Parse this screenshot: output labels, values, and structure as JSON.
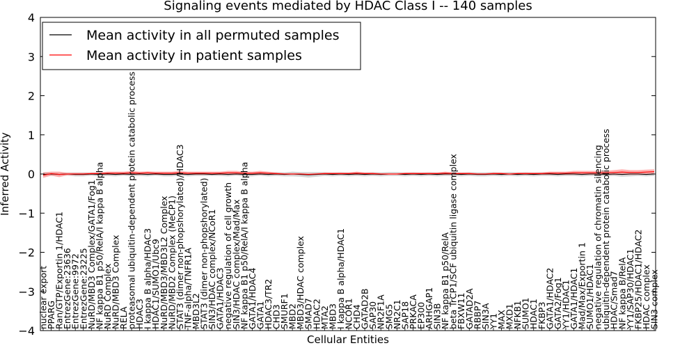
{
  "chart_data": {
    "type": "line",
    "title": "Signaling events mediated by HDAC Class I -- 140 samples",
    "xlabel": "Cellular Entities",
    "ylabel": "Inferred Activity",
    "ylim": [
      -4,
      4
    ],
    "yticks": [
      -4,
      -3,
      -2,
      -1,
      0,
      1,
      2,
      3,
      4
    ],
    "ytick_labels": [
      "−4",
      "−3",
      "−2",
      "−1",
      "0",
      "1",
      "2",
      "3",
      "4"
    ],
    "grid": false,
    "legend_position": "top-left",
    "categories": [
      "nuclear export",
      "PPARG",
      "Ran/GTP/Exportin 1/HDAC1",
      "EntrezGene:23636",
      "EntrezGene:9972",
      "EntrezGene:23225",
      "NuRD/MBD3 Complex/GATA1/Fog1",
      "NF kappa B1 p50/RelA/I kappa B alpha",
      "NuRD Complex",
      "NuRD/MBD3 Complex",
      "RELA",
      "proteasomal ubiquitin-dependent protein catabolic process",
      "HDAC3",
      "I kappa B alpha/HDAC3",
      "HDAC1/SUMO1/Ubc9",
      "NuRD/MBD3/MBD3L2 Complex",
      "NuRD/MBD2 Complex (MeCP1)",
      "STAT3 (dimer non-phopshorylated)/HDAC3",
      "TNF-alpha/TNFR1A",
      "MBD3L2",
      "STAT3 (dimer non-phopshorylated)",
      "SIN3/HDAC complex/NCoR1",
      "GATA1/HDAC3",
      "negative regulation of cell growth",
      "SIN3/HDAC complex/Mad/Max",
      "NF kappa B1 p50/RelA/I kappa B alpha",
      "GATA1/HDAC4",
      "GATA1",
      "HDAC3/TR2",
      "CHD3",
      "SMURF1",
      "MBD2",
      "MBD3/HDAC complex",
      "SMAD7",
      "HDAC2",
      "MTA2",
      "MBD3",
      "I kappa B alpha/HDAC1",
      "NCOR1",
      "CHD4",
      "GATAD2B",
      "SAP30",
      "NR2F1A",
      "SMG5",
      "NR2C1",
      "SAP18",
      "PRKACA",
      "EP300",
      "ARHGAP1",
      "SIN3B",
      "NF kappa B1 p50/RelA",
      "beta TrCP1/SCF ubiquitin ligase complex",
      "FBXW11",
      "GATAD2A",
      "RBBP7",
      "SIN3A",
      "YY1",
      "MAX",
      "MXD1",
      "NFKB1",
      "SUMO1",
      "HDAC1",
      "FKBP3",
      "GATA1/HDAC2",
      "GATA2/Fog1",
      "YY1/HDAC1",
      "GATA1/HDAC1",
      "Mad/Max/Exportin 1",
      "SUMO1/HDAC1",
      "negative regulation of chromatin silencing",
      "ubiquitin-dependent protein catabolic process",
      "HDAC/Smad7",
      "NF kappa B/RelA",
      "YY1/SAP30/HDAC1",
      "FKBP25/HDAC1/HDAC2",
      "HDAC complex",
      "SIN3 complex"
    ],
    "series": [
      {
        "name": "Mean activity in all permuted samples",
        "color": "#000000",
        "values": [
          -0.01,
          0.0,
          -0.01,
          0.0,
          -0.01,
          -0.01,
          0.0,
          -0.01,
          0.0,
          -0.01,
          0.0,
          -0.01,
          0.0,
          -0.01,
          0.0,
          -0.01,
          -0.01,
          0.0,
          -0.01,
          0.0,
          0.0,
          -0.01,
          0.0,
          -0.01,
          0.0,
          -0.01,
          -0.01,
          0.0,
          -0.01,
          0.0,
          -0.01,
          0.0,
          -0.01,
          -0.02,
          -0.01,
          0.0,
          -0.01,
          0.0,
          -0.01,
          0.0,
          -0.01,
          0.0,
          -0.01,
          0.0,
          0.0,
          -0.01,
          0.0,
          -0.01,
          0.0,
          -0.01,
          0.0,
          0.0,
          -0.01,
          0.0,
          -0.01,
          -0.01,
          0.0,
          -0.01,
          0.0,
          -0.01,
          0.0,
          -0.01,
          0.0,
          0.0,
          -0.01,
          0.0,
          0.0,
          -0.01,
          0.0,
          0.0,
          -0.01,
          0.0,
          -0.01,
          0.0,
          0.0,
          -0.01,
          0.0
        ],
        "band": [
          0.06,
          0.05,
          0.05,
          0.04,
          0.05,
          0.05,
          0.04,
          0.05,
          0.05,
          0.05,
          0.04,
          0.05,
          0.05,
          0.05,
          0.04,
          0.05,
          0.05,
          0.04,
          0.05,
          0.05,
          0.05,
          0.04,
          0.05,
          0.05,
          0.04,
          0.05,
          0.05,
          0.04,
          0.05,
          0.05,
          0.05,
          0.06,
          0.06,
          0.07,
          0.06,
          0.05,
          0.05,
          0.05,
          0.05,
          0.05,
          0.05,
          0.05,
          0.05,
          0.05,
          0.05,
          0.05,
          0.05,
          0.05,
          0.05,
          0.05,
          0.05,
          0.05,
          0.05,
          0.05,
          0.05,
          0.05,
          0.05,
          0.05,
          0.05,
          0.05,
          0.05,
          0.05,
          0.05,
          0.05,
          0.05,
          0.05,
          0.05,
          0.05,
          0.05,
          0.05,
          0.05,
          0.05,
          0.06,
          0.06,
          0.05,
          0.05,
          0.05
        ]
      },
      {
        "name": "Mean activity in patient samples",
        "color": "#ff0000",
        "values": [
          -0.03,
          0.01,
          -0.01,
          0.0,
          0.0,
          0.0,
          0.01,
          0.01,
          0.02,
          0.02,
          0.02,
          0.03,
          0.02,
          0.03,
          0.02,
          0.02,
          0.02,
          0.03,
          0.02,
          0.02,
          0.02,
          0.02,
          0.02,
          0.03,
          0.03,
          0.02,
          0.02,
          0.03,
          0.02,
          0.01,
          0.0,
          0.0,
          0.0,
          -0.01,
          0.0,
          0.01,
          0.01,
          0.01,
          0.01,
          0.02,
          0.01,
          0.01,
          0.0,
          0.0,
          0.0,
          0.01,
          0.01,
          0.01,
          0.01,
          0.01,
          0.02,
          0.01,
          0.01,
          0.01,
          0.0,
          0.0,
          0.01,
          0.01,
          0.0,
          0.01,
          0.01,
          0.01,
          0.01,
          0.02,
          0.02,
          0.02,
          0.03,
          0.03,
          0.03,
          0.03,
          0.03,
          0.04,
          0.05,
          0.04,
          0.04,
          0.05,
          0.06
        ],
        "band": [
          0.07,
          0.05,
          0.07,
          0.03,
          0.03,
          0.03,
          0.03,
          0.03,
          0.04,
          0.04,
          0.04,
          0.05,
          0.04,
          0.04,
          0.04,
          0.04,
          0.04,
          0.05,
          0.04,
          0.04,
          0.04,
          0.04,
          0.04,
          0.05,
          0.05,
          0.04,
          0.04,
          0.05,
          0.04,
          0.03,
          0.02,
          0.02,
          0.02,
          0.02,
          0.02,
          0.03,
          0.03,
          0.03,
          0.03,
          0.04,
          0.03,
          0.03,
          0.02,
          0.02,
          0.02,
          0.03,
          0.03,
          0.03,
          0.03,
          0.03,
          0.04,
          0.03,
          0.03,
          0.03,
          0.02,
          0.02,
          0.03,
          0.03,
          0.02,
          0.03,
          0.03,
          0.03,
          0.03,
          0.04,
          0.04,
          0.04,
          0.05,
          0.05,
          0.05,
          0.05,
          0.05,
          0.06,
          0.07,
          0.06,
          0.06,
          0.06,
          0.06
        ]
      }
    ]
  }
}
